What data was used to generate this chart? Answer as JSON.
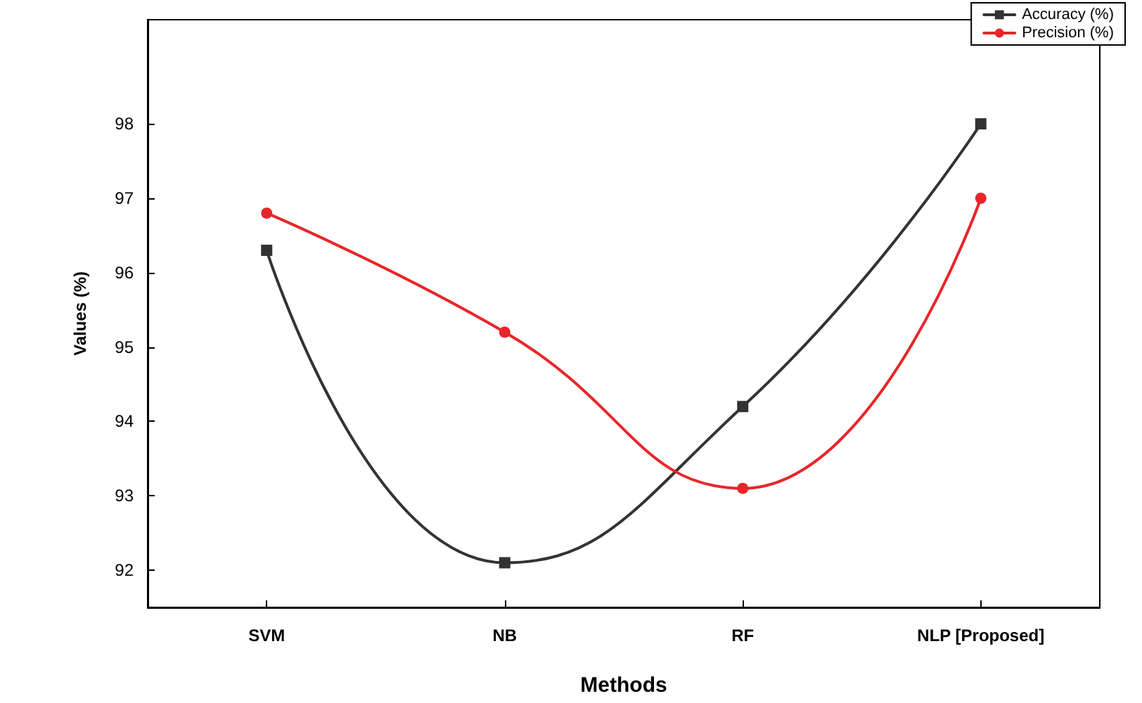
{
  "chart_data": {
    "type": "line",
    "xlabel": "Methods",
    "ylabel": "Values (%)",
    "categories": [
      "SVM",
      "NB",
      "RF",
      "NLP [Proposed]"
    ],
    "series": [
      {
        "name": "Accuracy (%)",
        "color": "#333333",
        "marker": "square",
        "values": [
          96.3,
          92.1,
          94.2,
          98.0
        ]
      },
      {
        "name": "Precision (%)",
        "color": "#e8262a",
        "marker": "circle",
        "values": [
          96.8,
          95.2,
          93.1,
          97.0
        ]
      }
    ],
    "ylim": [
      91.5,
      99.4
    ],
    "yticks": [
      92,
      93,
      94,
      95,
      96,
      97,
      98
    ],
    "grid": false,
    "legend": "top right"
  }
}
